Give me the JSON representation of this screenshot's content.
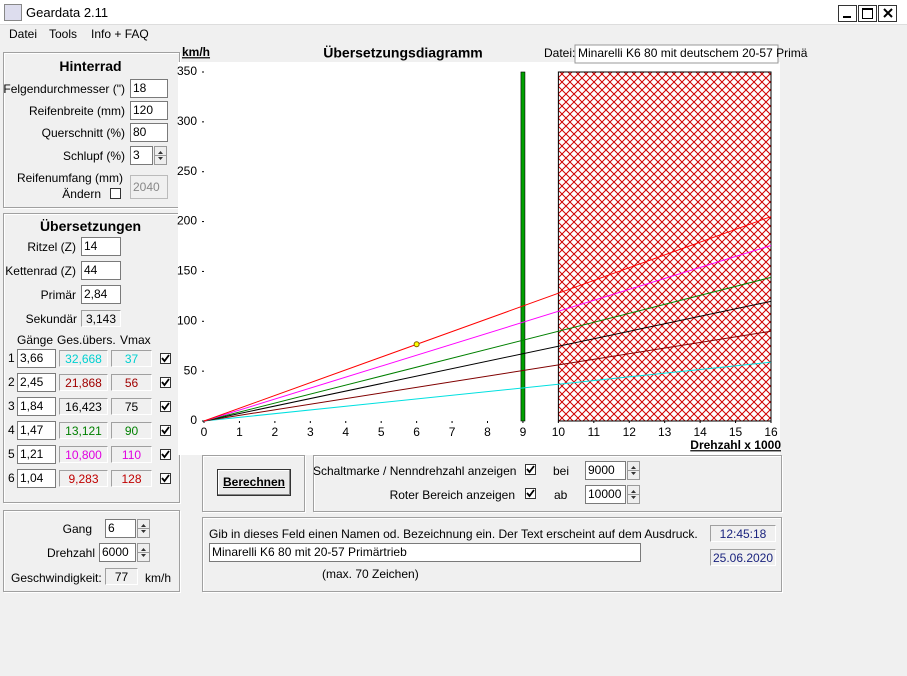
{
  "window": {
    "title": "Geardata 2.11"
  },
  "menu": [
    "Datei",
    "Tools",
    "Info + FAQ"
  ],
  "hinterrad": {
    "title": "Hinterrad",
    "fields": [
      {
        "label": "Felgendurchmesser (\")",
        "value": "18"
      },
      {
        "label": "Reifenbreite (mm)",
        "value": "120"
      },
      {
        "label": "Querschnitt (%)",
        "value": "80"
      },
      {
        "label": "Schlupf (%)",
        "value": "3"
      }
    ],
    "reifenumfang": {
      "label": "Reifenumfang (mm)",
      "aendern": "Ändern",
      "checked": false,
      "value": "2040"
    }
  },
  "uebersetzungen": {
    "title": "Übersetzungen",
    "fields": [
      {
        "label": "Ritzel (Z)",
        "value": "14"
      },
      {
        "label": "Kettenrad (Z)",
        "value": "44"
      },
      {
        "label": "Primär",
        "value": "2,84"
      },
      {
        "label": "Sekundär",
        "value": "3,143"
      }
    ],
    "headers": [
      "Gänge",
      "Ges.übers.",
      "Vmax"
    ],
    "rows": [
      [
        "1",
        "3,66",
        "32,668",
        "37"
      ],
      [
        "2",
        "2,45",
        "21,868",
        "56"
      ],
      [
        "3",
        "1,84",
        "16,423",
        "75"
      ],
      [
        "4",
        "1,47",
        "13,121",
        "90"
      ],
      [
        "5",
        "1,21",
        "10,800",
        "110"
      ],
      [
        "6",
        "1,04",
        "9,283",
        "128"
      ]
    ],
    "row_colors": [
      "#00d0d0",
      "#a00000",
      "#000000",
      "#008000",
      "#e000e0",
      "#c00000"
    ],
    "checked": [
      true,
      true,
      true,
      true,
      true,
      true
    ]
  },
  "gang_panel": {
    "gang_label": "Gang",
    "gang": "6",
    "drehzahl_label": "Drehzahl",
    "drehzahl": "6000",
    "speed_label": "Geschwindigkeit:",
    "speed": "77",
    "unit": "km/h"
  },
  "button": "Berechnen",
  "options": {
    "shift_label": "Schaltmarke / Nenndrehzahl anzeigen",
    "shift_checked": true,
    "bei": "bei",
    "shift_value": "9000",
    "red_label": "Roter Bereich anzeigen",
    "red_checked": true,
    "ab": "ab",
    "red_value": "10000"
  },
  "notes": {
    "hint": "Gib in dieses Feld einen Namen od. Bezeichnung ein. Der Text erscheint auf dem Ausdruck.",
    "text": "Minarelli K6 80 mit 20-57 Primärtrieb",
    "max": "(max. 70 Zeichen)",
    "time": "12:45:18",
    "date": "25.06.2020"
  },
  "chart_data": {
    "type": "line",
    "title": "Übersetzungsdiagramm",
    "y_label": "km/h",
    "x_label": "Drehzahl x 1000",
    "file_label": "Datei:",
    "file": "Minarelli K6 80 mit deutschem 20-57 Primä",
    "x": [
      0,
      16
    ],
    "series": [
      {
        "color": "#00e0e0",
        "values": [
          0,
          59
        ]
      },
      {
        "color": "#800000",
        "values": [
          0,
          90
        ]
      },
      {
        "color": "#000000",
        "values": [
          0,
          120
        ]
      },
      {
        "color": "#008000",
        "values": [
          0,
          144
        ]
      },
      {
        "color": "#ff00ff",
        "values": [
          0,
          176
        ]
      },
      {
        "color": "#ff0000",
        "values": [
          0,
          205
        ]
      }
    ],
    "marker": {
      "x": 6,
      "y": 77,
      "color": "#ffff00"
    },
    "shift_mark": 9,
    "shift_color": "#00a000",
    "red_zone": [
      10,
      16
    ],
    "red_color": "#d00000",
    "xlim": [
      0,
      16
    ],
    "ylim": [
      0,
      350
    ],
    "xticks": [
      0,
      1,
      2,
      3,
      4,
      5,
      6,
      7,
      8,
      9,
      10,
      11,
      12,
      13,
      14,
      15,
      16
    ],
    "yticks": [
      0,
      50,
      100,
      150,
      200,
      250,
      300,
      350
    ]
  }
}
